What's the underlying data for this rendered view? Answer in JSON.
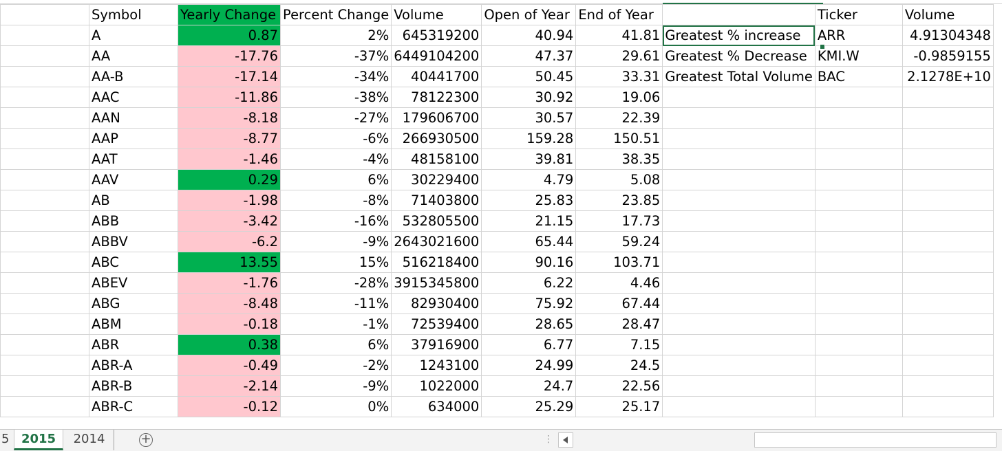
{
  "headers": {
    "symbol": "Symbol",
    "yearly_change": "Yearly Change",
    "percent_change": "Percent Change",
    "volume": "Volume",
    "open_of_year": "Open of Year",
    "end_of_year": "End of Year",
    "ticker": "Ticker",
    "summary_volume": "Volume"
  },
  "rows": [
    {
      "symbol": "A",
      "change": "0.87",
      "pct": "2%",
      "volume": "645319200",
      "open": "40.94",
      "close": "41.81",
      "dir": "pos"
    },
    {
      "symbol": "AA",
      "change": "-17.76",
      "pct": "-37%",
      "volume": "6449104200",
      "open": "47.37",
      "close": "29.61",
      "dir": "neg"
    },
    {
      "symbol": "AA-B",
      "change": "-17.14",
      "pct": "-34%",
      "volume": "40441700",
      "open": "50.45",
      "close": "33.31",
      "dir": "neg"
    },
    {
      "symbol": "AAC",
      "change": "-11.86",
      "pct": "-38%",
      "volume": "78122300",
      "open": "30.92",
      "close": "19.06",
      "dir": "neg"
    },
    {
      "symbol": "AAN",
      "change": "-8.18",
      "pct": "-27%",
      "volume": "179606700",
      "open": "30.57",
      "close": "22.39",
      "dir": "neg"
    },
    {
      "symbol": "AAP",
      "change": "-8.77",
      "pct": "-6%",
      "volume": "266930500",
      "open": "159.28",
      "close": "150.51",
      "dir": "neg"
    },
    {
      "symbol": "AAT",
      "change": "-1.46",
      "pct": "-4%",
      "volume": "48158100",
      "open": "39.81",
      "close": "38.35",
      "dir": "neg"
    },
    {
      "symbol": "AAV",
      "change": "0.29",
      "pct": "6%",
      "volume": "30229400",
      "open": "4.79",
      "close": "5.08",
      "dir": "pos"
    },
    {
      "symbol": "AB",
      "change": "-1.98",
      "pct": "-8%",
      "volume": "71403800",
      "open": "25.83",
      "close": "23.85",
      "dir": "neg"
    },
    {
      "symbol": "ABB",
      "change": "-3.42",
      "pct": "-16%",
      "volume": "532805500",
      "open": "21.15",
      "close": "17.73",
      "dir": "neg"
    },
    {
      "symbol": "ABBV",
      "change": "-6.2",
      "pct": "-9%",
      "volume": "2643021600",
      "open": "65.44",
      "close": "59.24",
      "dir": "neg"
    },
    {
      "symbol": "ABC",
      "change": "13.55",
      "pct": "15%",
      "volume": "516218400",
      "open": "90.16",
      "close": "103.71",
      "dir": "pos"
    },
    {
      "symbol": "ABEV",
      "change": "-1.76",
      "pct": "-28%",
      "volume": "3915345800",
      "open": "6.22",
      "close": "4.46",
      "dir": "neg"
    },
    {
      "symbol": "ABG",
      "change": "-8.48",
      "pct": "-11%",
      "volume": "82930400",
      "open": "75.92",
      "close": "67.44",
      "dir": "neg"
    },
    {
      "symbol": "ABM",
      "change": "-0.18",
      "pct": "-1%",
      "volume": "72539400",
      "open": "28.65",
      "close": "28.47",
      "dir": "neg"
    },
    {
      "symbol": "ABR",
      "change": "0.38",
      "pct": "6%",
      "volume": "37916900",
      "open": "6.77",
      "close": "7.15",
      "dir": "pos"
    },
    {
      "symbol": "ABR-A",
      "change": "-0.49",
      "pct": "-2%",
      "volume": "1243100",
      "open": "24.99",
      "close": "24.5",
      "dir": "neg"
    },
    {
      "symbol": "ABR-B",
      "change": "-2.14",
      "pct": "-9%",
      "volume": "1022000",
      "open": "24.7",
      "close": "22.56",
      "dir": "neg"
    },
    {
      "symbol": "ABR-C",
      "change": "-0.12",
      "pct": "0%",
      "volume": "634000",
      "open": "25.29",
      "close": "25.17",
      "dir": "neg"
    }
  ],
  "summary": [
    {
      "label": "Greatest % increase",
      "ticker": "ARR",
      "value": "4.91304348"
    },
    {
      "label": "Greatest % Decrease",
      "ticker": "KMI.W",
      "value": "-0.9859155"
    },
    {
      "label": "Greatest Total Volume",
      "ticker": "BAC",
      "value": "2.1278E+10"
    }
  ],
  "tabs": {
    "prev_label": "5",
    "sheets": [
      "2015",
      "2014"
    ],
    "active": "2015",
    "add_icon": "+"
  },
  "colors": {
    "positive_fill": "#00b050",
    "negative_fill": "#ffc7ce",
    "negative_text": "#9c0006",
    "accent": "#217346"
  }
}
